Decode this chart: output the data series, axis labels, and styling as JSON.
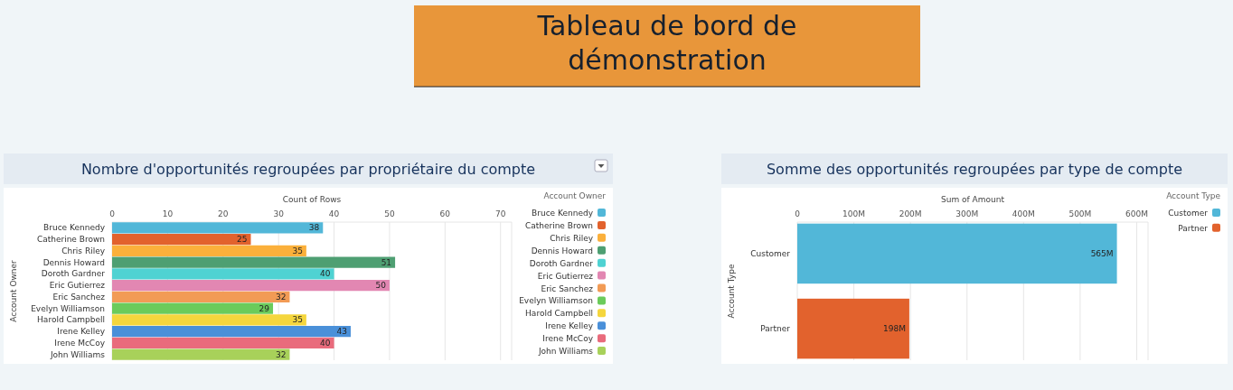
{
  "chart_data": [
    {
      "type": "other",
      "title": "Tableau de bord de démonstration"
    },
    {
      "type": "bar",
      "orientation": "horizontal",
      "stacked": true,
      "title": "Nombre d'opportunités regroupées par propriétaire du compte",
      "xlabel": "Count of Rows",
      "ylabel": "Account Owner",
      "legend_title": "Account Owner",
      "legend": "right",
      "grid": "x",
      "data_labels": true,
      "categories": [
        "Bruce Kennedy",
        "Catherine Brown",
        "Chris Riley",
        "Dennis Howard",
        "Doroth Gardner",
        "Eric Gutierrez",
        "Eric Sanchez",
        "Evelyn Williamson",
        "Harold Campbell",
        "Irene Kelley",
        "Irene McCoy",
        "John Williams"
      ],
      "series": [
        {
          "name": "Bruce Kennedy",
          "color": "#52b7d8",
          "values": [
            38,
            null,
            null,
            null,
            null,
            null,
            null,
            null,
            null,
            null,
            null,
            null
          ]
        },
        {
          "name": "Catherine Brown",
          "color": "#e2622d",
          "values": [
            null,
            25,
            null,
            null,
            null,
            null,
            null,
            null,
            null,
            null,
            null,
            null
          ]
        },
        {
          "name": "Chris Riley",
          "color": "#fbb03b",
          "values": [
            null,
            null,
            35,
            null,
            null,
            null,
            null,
            null,
            null,
            null,
            null,
            null
          ]
        },
        {
          "name": "Dennis Howard",
          "color": "#4e9f72",
          "values": [
            null,
            null,
            null,
            51,
            null,
            null,
            null,
            null,
            null,
            null,
            null,
            null
          ]
        },
        {
          "name": "Doroth Gardner",
          "color": "#4fd2d2",
          "values": [
            null,
            null,
            null,
            null,
            40,
            null,
            null,
            null,
            null,
            null,
            null,
            null
          ]
        },
        {
          "name": "Eric Gutierrez",
          "color": "#e287b2",
          "values": [
            null,
            null,
            null,
            null,
            null,
            50,
            null,
            null,
            null,
            null,
            null,
            null
          ]
        },
        {
          "name": "Eric Sanchez",
          "color": "#f29b55",
          "values": [
            null,
            null,
            null,
            null,
            null,
            null,
            32,
            null,
            null,
            null,
            null,
            null
          ]
        },
        {
          "name": "Evelyn Williamson",
          "color": "#6bcb5b",
          "values": [
            null,
            null,
            null,
            null,
            null,
            null,
            null,
            29,
            null,
            null,
            null,
            null
          ]
        },
        {
          "name": "Harold Campbell",
          "color": "#f5d63d",
          "values": [
            null,
            null,
            null,
            null,
            null,
            null,
            null,
            null,
            35,
            null,
            null,
            null
          ]
        },
        {
          "name": "Irene Kelley",
          "color": "#4a90d9",
          "values": [
            null,
            null,
            null,
            null,
            null,
            null,
            null,
            null,
            null,
            43,
            null,
            null
          ]
        },
        {
          "name": "Irene McCoy",
          "color": "#e96b7c",
          "values": [
            null,
            null,
            null,
            null,
            null,
            null,
            null,
            null,
            null,
            null,
            40,
            null
          ]
        },
        {
          "name": "John Williams",
          "color": "#a8d15a",
          "values": [
            null,
            null,
            null,
            null,
            null,
            null,
            null,
            null,
            null,
            null,
            null,
            32
          ]
        }
      ],
      "xlim": [
        0,
        72
      ],
      "xticks": [
        0,
        10,
        20,
        30,
        40,
        50,
        60,
        70
      ]
    },
    {
      "type": "bar",
      "orientation": "horizontal",
      "stacked": true,
      "title": "Somme des opportunités regroupées par type de compte",
      "xlabel": "Sum of Amount",
      "ylabel": "Account Type",
      "legend_title": "Account Type",
      "legend": "right",
      "grid": "x",
      "categories": [
        "Customer",
        "Partner"
      ],
      "series": [
        {
          "name": "Customer",
          "color": "#52b7d8",
          "values": [
            565,
            null
          ],
          "value_labels": [
            "565M",
            null
          ]
        },
        {
          "name": "Partner",
          "color": "#e2622d",
          "values": [
            null,
            198
          ],
          "value_labels": [
            null,
            "198M"
          ]
        }
      ],
      "xlim": [
        0,
        620
      ],
      "xticks": [
        0,
        {
          "value": 100,
          "label": "100M"
        },
        {
          "value": 200,
          "label": "200M"
        },
        {
          "value": 300,
          "label": "300M"
        },
        {
          "value": 400,
          "label": "400M"
        },
        {
          "value": 500,
          "label": "500M"
        },
        {
          "value": 600,
          "label": "600M"
        }
      ]
    }
  ]
}
